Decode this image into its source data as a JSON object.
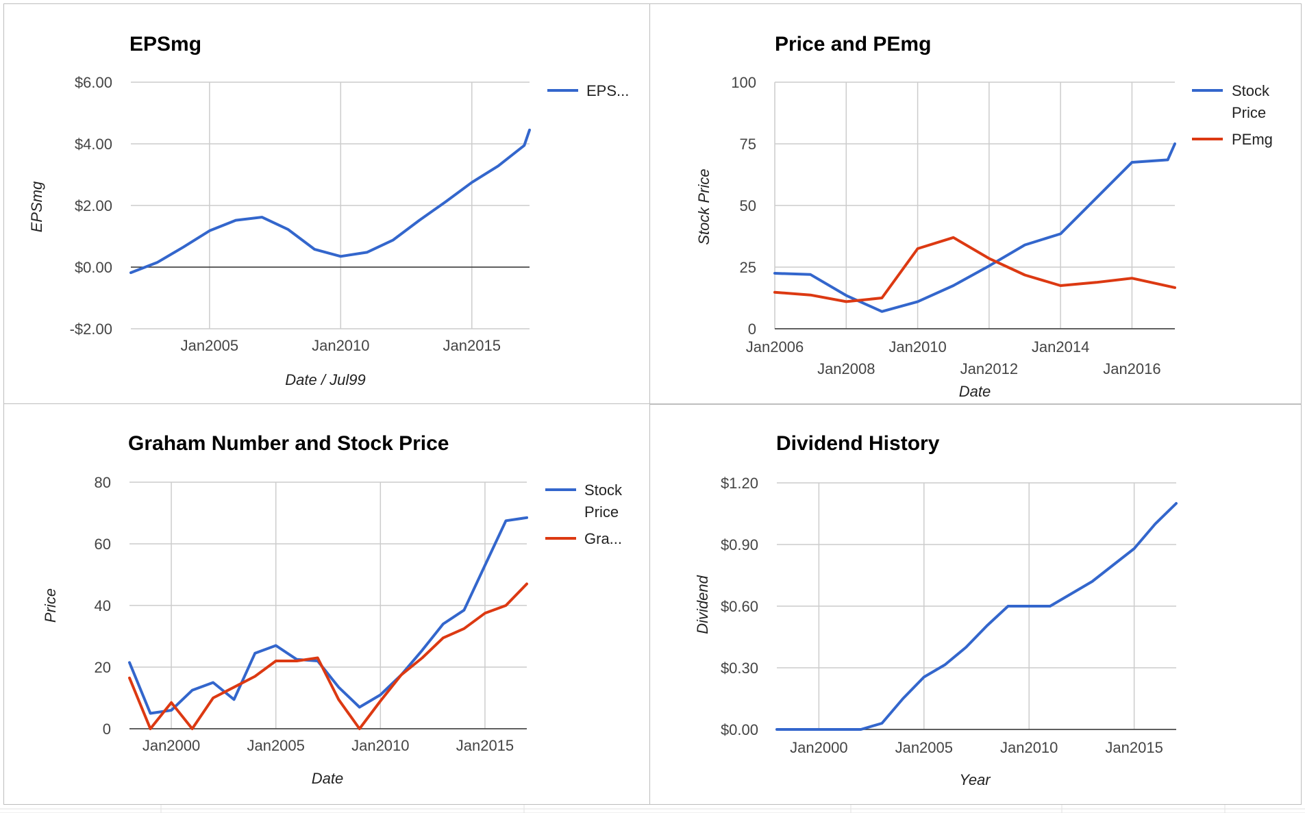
{
  "colors": {
    "blue": "#3366cc",
    "red": "#dc3912",
    "grid": "#cccccc",
    "baseline": "#333333"
  },
  "charts": [
    {
      "title": "EPSmg",
      "xlabel": "Date / Jul99",
      "ylabel": "EPSmg",
      "legend": [
        "EPS..."
      ]
    },
    {
      "title": "Price and PEmg",
      "xlabel": "Date",
      "ylabel": "Stock Price",
      "legend": [
        "Stock Price",
        "PEmg"
      ]
    },
    {
      "title": "Graham Number and Stock Price",
      "xlabel": "Date",
      "ylabel": "Price",
      "legend": [
        "Stock Price",
        "Gra..."
      ]
    },
    {
      "title": "Dividend History",
      "xlabel": "Year",
      "ylabel": "Dividend",
      "legend": []
    }
  ],
  "chart_data": [
    {
      "type": "line",
      "title": "EPSmg",
      "xlabel": "Date / Jul99",
      "ylabel": "EPSmg",
      "x_range": [
        2002,
        2017.2
      ],
      "ylim": [
        -2,
        6
      ],
      "x_ticks": [
        {
          "v": 2005,
          "label": "Jan2005"
        },
        {
          "v": 2010,
          "label": "Jan2010"
        },
        {
          "v": 2015,
          "label": "Jan2015"
        }
      ],
      "y_ticks": [
        {
          "v": -2,
          "label": "-$2.00"
        },
        {
          "v": 0,
          "label": "$0.00"
        },
        {
          "v": 2,
          "label": "$2.00"
        },
        {
          "v": 4,
          "label": "$4.00"
        },
        {
          "v": 6,
          "label": "$6.00"
        }
      ],
      "zero_line": true,
      "legend_position": "right",
      "series": [
        {
          "name": "EPS...",
          "color": "#3366cc",
          "x": [
            2002,
            2003,
            2004,
            2005,
            2006,
            2007,
            2008,
            2009,
            2010,
            2011,
            2012,
            2013,
            2014,
            2015,
            2016,
            2017,
            2017.2
          ],
          "y": [
            -0.18,
            0.15,
            0.65,
            1.18,
            1.52,
            1.62,
            1.22,
            0.58,
            0.35,
            0.48,
            0.88,
            1.52,
            2.12,
            2.75,
            3.28,
            3.95,
            4.45
          ]
        }
      ]
    },
    {
      "type": "line",
      "title": "Price and PEmg",
      "xlabel": "Date",
      "ylabel": "Stock Price",
      "x_range": [
        2006,
        2017.2
      ],
      "ylim": [
        0,
        100
      ],
      "x_ticks": [
        {
          "v": 2006,
          "label": "Jan2006",
          "row": 0
        },
        {
          "v": 2008,
          "label": "Jan2008",
          "row": 1
        },
        {
          "v": 2010,
          "label": "Jan2010",
          "row": 0
        },
        {
          "v": 2012,
          "label": "Jan2012",
          "row": 1
        },
        {
          "v": 2014,
          "label": "Jan2014",
          "row": 0
        },
        {
          "v": 2016,
          "label": "Jan2016",
          "row": 1
        }
      ],
      "y_ticks": [
        {
          "v": 0,
          "label": "0"
        },
        {
          "v": 25,
          "label": "25"
        },
        {
          "v": 50,
          "label": "50"
        },
        {
          "v": 75,
          "label": "75"
        },
        {
          "v": 100,
          "label": "100"
        }
      ],
      "legend_position": "right",
      "series": [
        {
          "name": "Stock Price",
          "color": "#3366cc",
          "x": [
            2006,
            2007,
            2008,
            2009,
            2010,
            2011,
            2012,
            2013,
            2014,
            2015,
            2016,
            2017,
            2017.2
          ],
          "y": [
            22.5,
            22,
            13.5,
            7,
            11,
            17.5,
            25.5,
            34,
            38.5,
            53,
            67.5,
            68.5,
            75
          ]
        },
        {
          "name": "PEmg",
          "color": "#dc3912",
          "x": [
            2006,
            2007,
            2008,
            2009,
            2010,
            2011,
            2012,
            2013,
            2014,
            2015,
            2016,
            2017.2
          ],
          "y": [
            14.8,
            13.7,
            11,
            12.5,
            32.5,
            37,
            28.5,
            21.8,
            17.5,
            18.8,
            20.5,
            16.7
          ]
        }
      ]
    },
    {
      "type": "line",
      "title": "Graham Number and Stock Price",
      "xlabel": "Date",
      "ylabel": "Price",
      "x_range": [
        1998,
        2017
      ],
      "ylim": [
        0,
        80
      ],
      "x_ticks": [
        {
          "v": 2000,
          "label": "Jan2000"
        },
        {
          "v": 2005,
          "label": "Jan2005"
        },
        {
          "v": 2010,
          "label": "Jan2010"
        },
        {
          "v": 2015,
          "label": "Jan2015"
        }
      ],
      "y_ticks": [
        {
          "v": 0,
          "label": "0"
        },
        {
          "v": 20,
          "label": "20"
        },
        {
          "v": 40,
          "label": "40"
        },
        {
          "v": 60,
          "label": "60"
        },
        {
          "v": 80,
          "label": "80"
        }
      ],
      "legend_position": "right",
      "series": [
        {
          "name": "Stock Price",
          "color": "#3366cc",
          "x": [
            1998,
            1999,
            2000,
            2001,
            2002,
            2003,
            2004,
            2005,
            2006,
            2007,
            2008,
            2009,
            2010,
            2011,
            2012,
            2013,
            2014,
            2015,
            2016,
            2017
          ],
          "y": [
            21.5,
            5,
            6,
            12.5,
            15,
            9.5,
            24.5,
            27,
            22.5,
            22,
            13.5,
            7,
            11,
            17.5,
            25.5,
            34,
            38.5,
            53,
            67.5,
            68.5
          ]
        },
        {
          "name": "Gra...",
          "color": "#dc3912",
          "x": [
            1998,
            1999,
            2000,
            2001,
            2002,
            2003,
            2004,
            2005,
            2006,
            2007,
            2008,
            2009,
            2010,
            2011,
            2012,
            2013,
            2014,
            2015,
            2016,
            2017
          ],
          "y": [
            16.5,
            0,
            8.5,
            0,
            10,
            13.5,
            17,
            22,
            22,
            23,
            9.5,
            0,
            9,
            17.5,
            23,
            29.5,
            32.5,
            37.5,
            40,
            47
          ]
        }
      ]
    },
    {
      "type": "line",
      "title": "Dividend History",
      "xlabel": "Year",
      "ylabel": "Dividend",
      "x_range": [
        1998,
        2017
      ],
      "ylim": [
        0,
        1.2
      ],
      "x_ticks": [
        {
          "v": 2000,
          "label": "Jan2000"
        },
        {
          "v": 2005,
          "label": "Jan2005"
        },
        {
          "v": 2010,
          "label": "Jan2010"
        },
        {
          "v": 2015,
          "label": "Jan2015"
        }
      ],
      "y_ticks": [
        {
          "v": 0,
          "label": "$0.00"
        },
        {
          "v": 0.3,
          "label": "$0.30"
        },
        {
          "v": 0.6,
          "label": "$0.60"
        },
        {
          "v": 0.9,
          "label": "$0.90"
        },
        {
          "v": 1.2,
          "label": "$1.20"
        }
      ],
      "legend_position": "none",
      "series": [
        {
          "name": "",
          "color": "#3366cc",
          "x": [
            1998,
            2002,
            2003,
            2004,
            2005,
            2006,
            2007,
            2008,
            2009,
            2010,
            2011,
            2012,
            2013,
            2014,
            2015,
            2016,
            2017
          ],
          "y": [
            0,
            0,
            0.03,
            0.15,
            0.255,
            0.315,
            0.4,
            0.505,
            0.6,
            0.6,
            0.6,
            0.66,
            0.72,
            0.8,
            0.88,
            1.0,
            1.1
          ]
        }
      ]
    }
  ]
}
